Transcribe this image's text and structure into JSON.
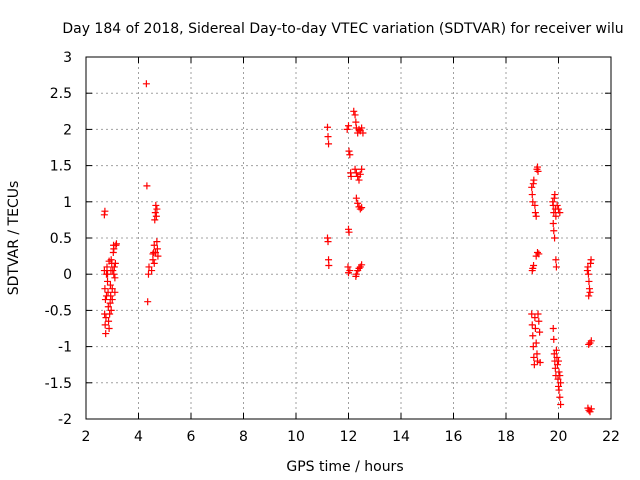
{
  "chart_data": {
    "type": "scatter",
    "title": "Day 184 of 2018, Sidereal Day-to-day VTEC variation (SDTVAR) for receiver wilu",
    "xlabel": "GPS time / hours",
    "ylabel": "SDTVAR / TECUs",
    "xlim": [
      2,
      22
    ],
    "ylim": [
      -2,
      3
    ],
    "xticks": [
      2,
      4,
      6,
      8,
      10,
      12,
      14,
      16,
      18,
      20,
      22
    ],
    "yticks": [
      -2,
      -1.5,
      -1,
      -0.5,
      0,
      0.5,
      1,
      1.5,
      2,
      2.5,
      3
    ],
    "xtick_labels": [
      "2",
      "4",
      "6",
      "8",
      "10",
      "12",
      "14",
      "16",
      "18",
      "20",
      "22"
    ],
    "ytick_labels": [
      "-2",
      "-1.5",
      "-1",
      "-0.5",
      "0",
      "0.5",
      "1",
      "1.5",
      "2",
      "2.5",
      "3"
    ],
    "grid": true,
    "marker": "+",
    "color": "#ff0000",
    "series": [
      {
        "name": "SDTVAR",
        "points": [
          [
            2.7,
            0.82
          ],
          [
            2.72,
            0.87
          ],
          [
            2.7,
            0.05
          ],
          [
            2.72,
            -0.2
          ],
          [
            2.74,
            -0.35
          ],
          [
            2.71,
            -0.55
          ],
          [
            2.73,
            -0.7
          ],
          [
            2.75,
            -0.82
          ],
          [
            2.76,
            -0.6
          ],
          [
            2.78,
            0.0
          ],
          [
            2.8,
            0.1
          ],
          [
            2.82,
            -0.1
          ],
          [
            2.84,
            -0.25
          ],
          [
            2.85,
            -0.45
          ],
          [
            2.86,
            -0.65
          ],
          [
            2.88,
            -0.75
          ],
          [
            2.9,
            -0.55
          ],
          [
            2.92,
            -0.4
          ],
          [
            2.94,
            -0.3
          ],
          [
            2.95,
            0.05
          ],
          [
            2.96,
            0.2
          ],
          [
            2.98,
            0.15
          ],
          [
            3.0,
            -0.2
          ],
          [
            3.02,
            0.05
          ],
          [
            3.04,
            0.3
          ],
          [
            3.05,
            0.4
          ],
          [
            3.06,
            0.35
          ],
          [
            3.08,
            0.1
          ],
          [
            3.1,
            -0.05
          ],
          [
            3.12,
            0.15
          ],
          [
            3.14,
            0.4
          ],
          [
            3.16,
            0.42
          ],
          [
            3.0,
            -0.35
          ],
          [
            2.96,
            -0.5
          ],
          [
            2.93,
            -0.15
          ],
          [
            2.88,
            0.18
          ],
          [
            2.82,
            0.0
          ],
          [
            2.78,
            -0.3
          ],
          [
            3.1,
            -0.25
          ],
          [
            3.06,
            0.0
          ],
          [
            4.3,
            2.63
          ],
          [
            4.32,
            1.22
          ],
          [
            4.35,
            -0.38
          ],
          [
            4.38,
            0.0
          ],
          [
            4.4,
            0.1
          ],
          [
            4.5,
            0.05
          ],
          [
            4.55,
            0.2
          ],
          [
            4.58,
            0.3
          ],
          [
            4.6,
            0.4
          ],
          [
            4.62,
            0.75
          ],
          [
            4.64,
            0.85
          ],
          [
            4.66,
            0.95
          ],
          [
            4.68,
            0.8
          ],
          [
            4.7,
            0.9
          ],
          [
            4.72,
            0.35
          ],
          [
            4.74,
            0.25
          ],
          [
            4.6,
            0.15
          ],
          [
            4.65,
            0.3
          ],
          [
            4.55,
            0.28
          ],
          [
            4.7,
            0.45
          ],
          [
            11.2,
            2.03
          ],
          [
            11.22,
            1.9
          ],
          [
            11.24,
            1.8
          ],
          [
            11.2,
            0.5
          ],
          [
            11.22,
            0.45
          ],
          [
            11.24,
            0.2
          ],
          [
            11.25,
            0.12
          ],
          [
            11.95,
            2.0
          ],
          [
            12.0,
            2.05
          ],
          [
            12.02,
            1.7
          ],
          [
            12.05,
            1.65
          ],
          [
            12.08,
            1.4
          ],
          [
            12.1,
            1.35
          ],
          [
            12.0,
            0.62
          ],
          [
            12.02,
            0.58
          ],
          [
            11.98,
            0.1
          ],
          [
            12.0,
            0.02
          ],
          [
            12.05,
            0.05
          ],
          [
            12.2,
            2.25
          ],
          [
            12.25,
            2.2
          ],
          [
            12.28,
            2.1
          ],
          [
            12.3,
            2.02
          ],
          [
            12.35,
            1.95
          ],
          [
            12.4,
            2.0
          ],
          [
            12.45,
            1.98
          ],
          [
            12.5,
            2.02
          ],
          [
            12.55,
            1.95
          ],
          [
            12.25,
            1.45
          ],
          [
            12.3,
            1.4
          ],
          [
            12.35,
            1.35
          ],
          [
            12.4,
            1.3
          ],
          [
            12.45,
            1.38
          ],
          [
            12.5,
            1.45
          ],
          [
            12.3,
            1.05
          ],
          [
            12.35,
            0.98
          ],
          [
            12.4,
            0.93
          ],
          [
            12.45,
            0.9
          ],
          [
            12.5,
            0.92
          ],
          [
            12.3,
            0.0
          ],
          [
            12.35,
            0.05
          ],
          [
            12.4,
            0.08
          ],
          [
            12.45,
            0.1
          ],
          [
            12.5,
            0.13
          ],
          [
            12.28,
            -0.03
          ],
          [
            18.98,
            1.2
          ],
          [
            19.0,
            1.1
          ],
          [
            19.02,
            1.0
          ],
          [
            19.04,
            1.25
          ],
          [
            19.06,
            1.3
          ],
          [
            19.1,
            0.95
          ],
          [
            19.12,
            0.85
          ],
          [
            19.15,
            0.8
          ],
          [
            19.18,
            1.45
          ],
          [
            19.2,
            1.48
          ],
          [
            19.22,
            1.42
          ],
          [
            19.0,
            0.05
          ],
          [
            19.02,
            0.08
          ],
          [
            19.05,
            0.12
          ],
          [
            19.15,
            0.25
          ],
          [
            19.2,
            0.3
          ],
          [
            19.25,
            0.28
          ],
          [
            18.98,
            -0.55
          ],
          [
            19.0,
            -0.7
          ],
          [
            19.02,
            -0.85
          ],
          [
            19.04,
            -1.0
          ],
          [
            19.06,
            -1.15
          ],
          [
            19.08,
            -1.25
          ],
          [
            19.1,
            -0.6
          ],
          [
            19.12,
            -0.75
          ],
          [
            19.15,
            -0.95
          ],
          [
            19.18,
            -1.1
          ],
          [
            19.2,
            -1.2
          ],
          [
            19.22,
            -0.55
          ],
          [
            19.25,
            -0.65
          ],
          [
            19.28,
            -0.8
          ],
          [
            19.3,
            -1.22
          ],
          [
            19.78,
            1.0
          ],
          [
            19.8,
            0.95
          ],
          [
            19.82,
            0.85
          ],
          [
            19.84,
            1.05
          ],
          [
            19.86,
            1.1
          ],
          [
            19.88,
            0.9
          ],
          [
            19.9,
            0.8
          ],
          [
            19.95,
            0.95
          ],
          [
            20.0,
            0.9
          ],
          [
            20.05,
            0.85
          ],
          [
            19.8,
            0.7
          ],
          [
            19.82,
            0.6
          ],
          [
            19.85,
            0.5
          ],
          [
            19.9,
            0.2
          ],
          [
            19.92,
            0.1
          ],
          [
            19.8,
            -0.75
          ],
          [
            19.82,
            -0.9
          ],
          [
            19.84,
            -1.1
          ],
          [
            19.86,
            -1.2
          ],
          [
            19.88,
            -1.3
          ],
          [
            19.9,
            -1.4
          ],
          [
            19.92,
            -1.05
          ],
          [
            19.94,
            -1.15
          ],
          [
            19.96,
            -1.25
          ],
          [
            19.98,
            -1.45
          ],
          [
            20.0,
            -1.55
          ],
          [
            20.02,
            -1.6
          ],
          [
            20.05,
            -1.7
          ],
          [
            20.08,
            -1.8
          ],
          [
            20.0,
            -1.2
          ],
          [
            20.02,
            -1.35
          ],
          [
            20.05,
            -1.4
          ],
          [
            20.08,
            -1.5
          ],
          [
            21.1,
            0.05
          ],
          [
            21.12,
            0.1
          ],
          [
            21.14,
            0.0
          ],
          [
            21.16,
            -0.1
          ],
          [
            21.18,
            -0.2
          ],
          [
            21.2,
            -0.25
          ],
          [
            21.22,
            0.15
          ],
          [
            21.24,
            0.2
          ],
          [
            21.15,
            -0.3
          ],
          [
            21.2,
            -0.95
          ],
          [
            21.25,
            -0.92
          ],
          [
            21.15,
            -0.97
          ],
          [
            21.12,
            -1.85
          ],
          [
            21.16,
            -1.88
          ],
          [
            21.2,
            -1.9
          ],
          [
            21.25,
            -1.86
          ]
        ]
      }
    ]
  }
}
